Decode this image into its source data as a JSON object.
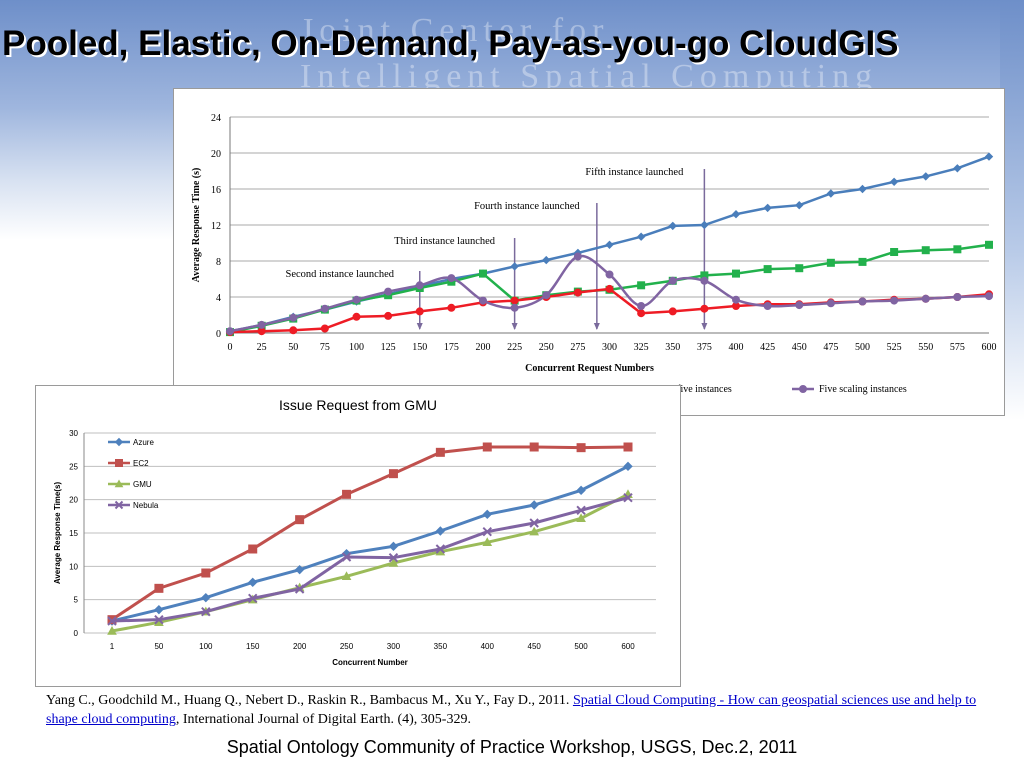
{
  "slide": {
    "title": "Pooled, Elastic, On-Demand, Pay-as-you-go CloudGIS",
    "watermark_line1": "Joint Center for",
    "watermark_line2": "Intelligent Spatial Computing",
    "citation_authors": "Yang C., Goodchild M., Huang Q., Nebert D., Raskin R., Bambacus M., Xu Y., Fay D., 2011.",
    "citation_link": "Spatial Cloud Computing - How can geospatial sciences use and help to shape cloud computing",
    "citation_rest": ", International Journal of Digital Earth. (4), 305-329.",
    "footer": "Spatial Ontology Community of Practice Workshop, USGS, Dec.2, 2011"
  },
  "colors": {
    "blue": "#4a7ebb",
    "green": "#22b14c",
    "red": "#ee1c25",
    "purple": "#8064a2",
    "azure": "#4f81bd",
    "ec2": "#c0504d",
    "gmu": "#9bbb59",
    "nebula": "#8064a2"
  },
  "chart_data": [
    {
      "type": "line",
      "title": "",
      "xlabel": "Concurrent Request Numbers",
      "ylabel": "Average Response Time (s)",
      "x": [
        0,
        25,
        50,
        75,
        100,
        125,
        150,
        175,
        200,
        225,
        250,
        275,
        300,
        325,
        350,
        375,
        400,
        425,
        450,
        475,
        500,
        525,
        550,
        575,
        600
      ],
      "ylim": [
        0,
        24
      ],
      "yticks": [
        0,
        4,
        8,
        12,
        16,
        20,
        24
      ],
      "grid": "horizontal",
      "legend_visible": [
        "r with five instances",
        "Five scaling instances"
      ],
      "annotations": [
        {
          "text": "Second instance launched",
          "x": 150
        },
        {
          "text": "Third instance launched",
          "x": 225
        },
        {
          "text": "Fourth instance launched",
          "x": 290
        },
        {
          "text": "Fifth instance launched",
          "x": 375
        }
      ],
      "series": [
        {
          "name": "",
          "color_key": "blue",
          "marker": "diamond",
          "values": [
            0.2,
            0.9,
            1.8,
            2.6,
            3.5,
            4.3,
            5.2,
            6.0,
            6.6,
            7.4,
            8.1,
            8.9,
            9.8,
            10.7,
            11.9,
            12.0,
            13.2,
            13.9,
            14.2,
            15.5,
            16.0,
            16.8,
            17.4,
            18.3,
            19.6
          ]
        },
        {
          "name": "",
          "color_key": "green",
          "marker": "square",
          "values": [
            0.1,
            0.8,
            1.6,
            2.6,
            3.6,
            4.2,
            5.0,
            5.7,
            6.6,
            3.6,
            4.2,
            4.6,
            4.8,
            5.3,
            5.8,
            6.4,
            6.6,
            7.1,
            7.2,
            7.8,
            7.9,
            9.0,
            9.2,
            9.3,
            9.8
          ]
        },
        {
          "name": "",
          "color_key": "red",
          "marker": "circle",
          "values": [
            0.1,
            0.2,
            0.3,
            0.5,
            1.8,
            1.9,
            2.4,
            2.8,
            3.4,
            3.6,
            4.0,
            4.5,
            4.9,
            2.2,
            2.4,
            2.7,
            3.0,
            3.2,
            3.2,
            3.4,
            3.5,
            3.7,
            3.8,
            4.0,
            4.3
          ]
        },
        {
          "name": "Five scaling instances",
          "color_key": "purple",
          "marker": "circle",
          "values": [
            0.2,
            0.9,
            1.7,
            2.7,
            3.7,
            4.6,
            5.3,
            6.1,
            3.6,
            2.8,
            4.2,
            8.5,
            6.5,
            3.0,
            5.8,
            5.8,
            3.7,
            3.0,
            3.1,
            3.3,
            3.5,
            3.6,
            3.8,
            4.0,
            4.1
          ]
        }
      ]
    },
    {
      "type": "line",
      "title": "Issue Request from GMU",
      "xlabel": "Concurrent Number",
      "ylabel": "Average Response Time(s)",
      "categories": [
        "1",
        "50",
        "100",
        "150",
        "200",
        "250",
        "300",
        "350",
        "400",
        "450",
        "500",
        "600"
      ],
      "ylim": [
        0,
        30
      ],
      "yticks": [
        0,
        5,
        10,
        15,
        20,
        25,
        30
      ],
      "grid": "horizontal",
      "legend": "top-left",
      "series": [
        {
          "name": "Azure",
          "color_key": "azure",
          "marker": "diamond",
          "values": [
            1.8,
            3.5,
            5.3,
            7.6,
            9.5,
            11.9,
            13.0,
            15.3,
            17.8,
            19.2,
            21.4,
            25.0
          ]
        },
        {
          "name": "EC2",
          "color_key": "ec2",
          "marker": "square",
          "values": [
            2.0,
            6.7,
            9.0,
            12.6,
            17.0,
            20.8,
            23.9,
            27.1,
            27.9,
            27.9,
            27.8,
            27.9
          ]
        },
        {
          "name": "GMU",
          "color_key": "gmu",
          "marker": "triangle",
          "values": [
            0.3,
            1.6,
            3.2,
            5.0,
            6.8,
            8.5,
            10.5,
            12.2,
            13.6,
            15.2,
            17.2,
            20.8
          ]
        },
        {
          "name": "Nebula",
          "color_key": "nebula",
          "marker": "x",
          "values": [
            1.8,
            2.0,
            3.2,
            5.2,
            6.6,
            11.4,
            11.3,
            12.6,
            15.2,
            16.5,
            18.4,
            20.3
          ]
        }
      ]
    }
  ]
}
